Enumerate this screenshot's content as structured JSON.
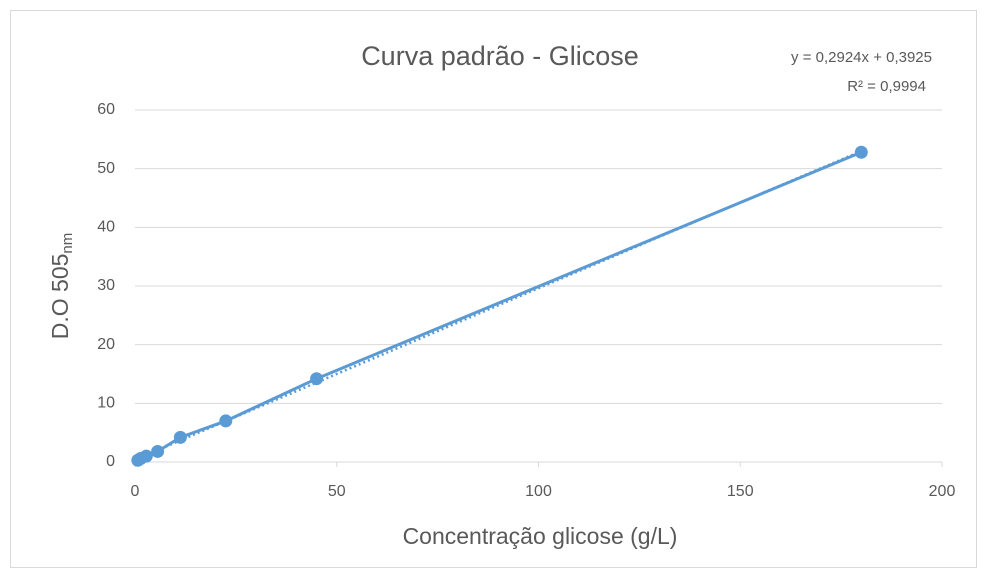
{
  "chart_data": {
    "type": "scatter",
    "title": "Curva padrão - Glicose",
    "xlabel": "Concentração glicose (g/L)",
    "ylabel": "D.O 505",
    "ylabel_sub": "nm",
    "annotations": [
      "y = 0,2924x + 0,3925",
      "R² = 0,9994"
    ],
    "xlim": [
      0,
      200
    ],
    "xticks": [
      0,
      50,
      100,
      150,
      200
    ],
    "ylim": [
      0,
      60
    ],
    "yticks": [
      0,
      10,
      20,
      30,
      40,
      50,
      60
    ],
    "grid": true,
    "series": [
      {
        "color": "#5b9bd5",
        "x": [
          0.7,
          1.4,
          2.8,
          5.6,
          11.25,
          22.5,
          45,
          180
        ],
        "values": [
          0.3,
          0.6,
          1.0,
          1.8,
          4.2,
          7.0,
          14.2,
          52.8
        ]
      }
    ],
    "trendline": {
      "x": [
        0.7,
        180
      ],
      "values": [
        0.6,
        53.0
      ]
    }
  }
}
